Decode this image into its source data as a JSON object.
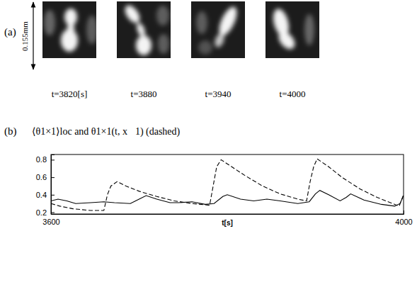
{
  "figure_a": {
    "label": "(a)",
    "scale_label": "0.155mm",
    "images": [
      "t=3820[s]",
      "t=3880",
      "t=3940",
      "t=4000"
    ]
  },
  "chart_data": {
    "type": "line",
    "label": "(b)",
    "title": "⟨θ1×1⟩loc and θ1×1(t, x⃗1) (dashed)",
    "x_label": "t[s]",
    "xlim": [
      3600,
      4000
    ],
    "xticks": [
      3600,
      4000
    ],
    "ylim": [
      0.18,
      0.86
    ],
    "yticks": [
      0.2,
      0.4,
      0.6,
      0.8
    ],
    "series": [
      {
        "color": "#000000",
        "line_style": "solid",
        "x": [
          3600,
          3608,
          3618,
          3628,
          3645,
          3660,
          3672,
          3690,
          3700,
          3708,
          3720,
          3735,
          3745,
          3760,
          3775,
          3785,
          3795,
          3800,
          3815,
          3830,
          3845,
          3860,
          3880,
          3893,
          3900,
          3905,
          3915,
          3928,
          3935,
          3940,
          3955,
          3975,
          3990,
          3996,
          4000
        ],
        "values": [
          0.33,
          0.35,
          0.33,
          0.3,
          0.31,
          0.32,
          0.31,
          0.3,
          0.35,
          0.39,
          0.35,
          0.31,
          0.31,
          0.32,
          0.29,
          0.3,
          0.38,
          0.4,
          0.35,
          0.33,
          0.35,
          0.33,
          0.3,
          0.32,
          0.41,
          0.45,
          0.4,
          0.33,
          0.37,
          0.41,
          0.34,
          0.29,
          0.27,
          0.3,
          0.39
        ]
      },
      {
        "color": "#000000",
        "line_style": "dashed",
        "x": [
          3600,
          3610,
          3625,
          3645,
          3660,
          3664,
          3668,
          3675,
          3685,
          3700,
          3720,
          3740,
          3760,
          3780,
          3784,
          3788,
          3793,
          3805,
          3820,
          3840,
          3860,
          3880,
          3890,
          3894,
          3898,
          3902,
          3915,
          3930,
          3950,
          3970,
          3990,
          3995,
          4000
        ],
        "values": [
          0.3,
          0.27,
          0.24,
          0.22,
          0.22,
          0.4,
          0.5,
          0.55,
          0.5,
          0.44,
          0.38,
          0.33,
          0.3,
          0.28,
          0.5,
          0.72,
          0.8,
          0.72,
          0.62,
          0.5,
          0.41,
          0.35,
          0.33,
          0.55,
          0.72,
          0.81,
          0.72,
          0.6,
          0.47,
          0.37,
          0.29,
          0.27,
          0.4
        ]
      }
    ]
  }
}
